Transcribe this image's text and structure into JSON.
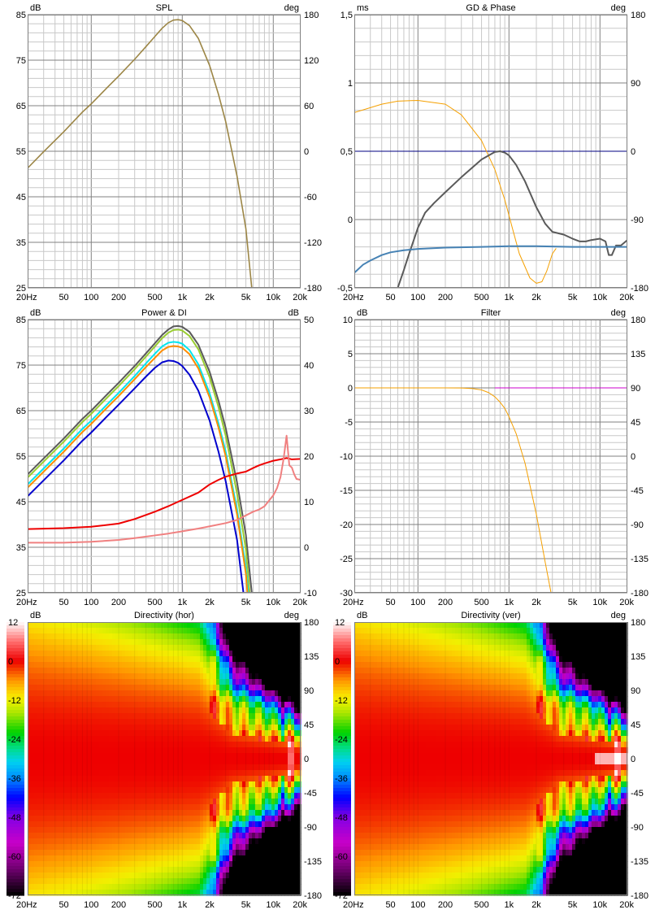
{
  "colors": {
    "background": "#ffffff",
    "plot_bg": "#ffffff",
    "grid_major": "#808080",
    "grid_minor": "#c8c8c8",
    "frame": "#808080"
  },
  "x_axis": {
    "type": "log",
    "range": [
      20,
      20000
    ],
    "ticks": [
      {
        "value": 20,
        "label": "20Hz"
      },
      {
        "value": 50,
        "label": "50"
      },
      {
        "value": 100,
        "label": "100"
      },
      {
        "value": 200,
        "label": "200"
      },
      {
        "value": 500,
        "label": "500"
      },
      {
        "value": 1000,
        "label": "1k"
      },
      {
        "value": 2000,
        "label": "2k"
      },
      {
        "value": 5000,
        "label": "5k"
      },
      {
        "value": 10000,
        "label": "10k"
      },
      {
        "value": 20000,
        "label": "20k"
      }
    ]
  },
  "chart_data": [
    {
      "id": "spl",
      "type": "line",
      "title": "SPL",
      "ylabel_left": "dB",
      "ylabel_right": "deg",
      "y_left": {
        "range": [
          25,
          85
        ],
        "ticks": [
          "85",
          "75",
          "65",
          "55",
          "45",
          "35",
          "25"
        ]
      },
      "y_right": {
        "range": [
          -180,
          180
        ],
        "ticks": [
          "180",
          "120",
          "60",
          "0",
          "-60",
          "-120",
          "-180"
        ]
      },
      "grid": true,
      "series": [
        {
          "axis": "left",
          "color": "#9c8646",
          "width": 1.6,
          "x": [
            20,
            30,
            50,
            80,
            100,
            150,
            200,
            300,
            400,
            500,
            600,
            700,
            800,
            900,
            1000,
            1200,
            1500,
            2000,
            2500,
            3000,
            4000,
            5000,
            5800
          ],
          "y": [
            51.3,
            54.9,
            59.3,
            63.6,
            65.4,
            69,
            71.5,
            75.2,
            78,
            80.2,
            82,
            83.2,
            83.8,
            83.9,
            83.7,
            82.6,
            79.8,
            73.8,
            67.5,
            61.5,
            49.5,
            38,
            25
          ]
        }
      ]
    },
    {
      "id": "gd_phase",
      "type": "line",
      "title": "GD & Phase",
      "ylabel_left": "ms",
      "ylabel_right": "deg",
      "y_left": {
        "range": [
          -0.5,
          1.5
        ],
        "ticks": [
          "1,5",
          "1",
          "0,5",
          "0",
          "-0,5"
        ]
      },
      "y_right": {
        "range": [
          -180,
          180
        ],
        "ticks": [
          "180",
          "90",
          "0",
          "-90",
          "-180"
        ]
      },
      "grid": true,
      "series": [
        {
          "axis": "left",
          "color": "#000080",
          "width": 1,
          "x": [
            20,
            20000
          ],
          "y": [
            0.5,
            0.5
          ]
        },
        {
          "axis": "right",
          "color": "#f5a000",
          "width": 1,
          "x": [
            20,
            40,
            60,
            100,
            200,
            300,
            500,
            700,
            900,
            1100,
            1300,
            1700,
            2000,
            2300,
            2600,
            3000,
            3300
          ],
          "y": [
            51,
            62,
            66,
            67,
            62,
            48,
            14,
            -24,
            -64,
            -103,
            -135,
            -167,
            -174,
            -172,
            -158,
            -135,
            -128
          ]
        },
        {
          "axis": "left",
          "color": "#5a5a5a",
          "width": 2,
          "x": [
            60,
            70,
            80,
            90,
            100,
            120,
            150,
            200,
            300,
            500,
            700,
            800,
            900,
            1000,
            1200,
            1500,
            2000,
            2500,
            3000,
            4000,
            5000,
            6000,
            7000,
            8000,
            10000,
            11500,
            12500,
            13500,
            15000,
            17000,
            20000
          ],
          "y": [
            -0.5,
            -0.37,
            -0.25,
            -0.15,
            -0.06,
            0.05,
            0.12,
            0.2,
            0.31,
            0.44,
            0.495,
            0.5,
            0.49,
            0.47,
            0.4,
            0.28,
            0.09,
            -0.03,
            -0.09,
            -0.11,
            -0.14,
            -0.16,
            -0.16,
            -0.15,
            -0.14,
            -0.16,
            -0.26,
            -0.26,
            -0.19,
            -0.19,
            -0.15
          ]
        },
        {
          "axis": "left",
          "color": "#4682b4",
          "width": 2,
          "x": [
            20,
            25,
            30,
            40,
            50,
            70,
            100,
            200,
            500,
            1000,
            2000,
            5000,
            10000,
            20000
          ],
          "y": [
            -0.39,
            -0.33,
            -0.3,
            -0.26,
            -0.24,
            -0.225,
            -0.215,
            -0.205,
            -0.2,
            -0.195,
            -0.195,
            -0.2,
            -0.2,
            -0.2
          ]
        }
      ]
    },
    {
      "id": "power_di",
      "type": "line",
      "title": "Power & DI",
      "ylabel_left": "dB",
      "ylabel_right": "dB",
      "y_left": {
        "range": [
          25,
          85
        ],
        "ticks": [
          "85",
          "75",
          "65",
          "55",
          "45",
          "35",
          "25"
        ]
      },
      "y_right": {
        "range": [
          -10,
          50
        ],
        "ticks": [
          "50",
          "40",
          "30",
          "20",
          "10",
          "0",
          "-10"
        ]
      },
      "grid": true,
      "series": [
        {
          "axis": "left",
          "color": "#5a5a5a",
          "width": 2,
          "x": [
            20,
            30,
            50,
            80,
            100,
            150,
            200,
            300,
            400,
            500,
            600,
            700,
            800,
            900,
            1000,
            1200,
            1500,
            2000,
            2500,
            3000,
            4000,
            5000,
            5800
          ],
          "y": [
            51,
            54.5,
            58.9,
            63.2,
            65,
            68.6,
            71.1,
            74.8,
            77.6,
            79.8,
            81.6,
            82.8,
            83.5,
            83.6,
            83.4,
            82.3,
            79.5,
            73.5,
            67.2,
            61.2,
            49.2,
            37.7,
            25
          ]
        },
        {
          "axis": "left",
          "color": "#9acd32",
          "width": 2,
          "x": [
            20,
            30,
            50,
            80,
            100,
            150,
            200,
            300,
            400,
            500,
            600,
            700,
            800,
            900,
            1000,
            1200,
            1500,
            2000,
            2500,
            3000,
            4000,
            5000,
            5500
          ],
          "y": [
            50.3,
            53.8,
            58.2,
            62.5,
            64.3,
            67.9,
            70.4,
            74.1,
            76.9,
            79.1,
            80.9,
            82.1,
            82.7,
            82.8,
            82.6,
            81.4,
            78.5,
            72.3,
            65.8,
            59.5,
            46.8,
            34.5,
            25
          ]
        },
        {
          "axis": "left",
          "color": "#00e5ee",
          "width": 2,
          "x": [
            20,
            30,
            50,
            80,
            100,
            150,
            200,
            300,
            400,
            500,
            600,
            700,
            800,
            900,
            1000,
            1200,
            1500,
            2000,
            2500,
            3000,
            4000,
            5000,
            5300
          ],
          "y": [
            48.8,
            52.3,
            56.7,
            61,
            62.8,
            66.4,
            68.9,
            72.6,
            75.4,
            77.5,
            79.1,
            79.9,
            80.1,
            80,
            79.7,
            78.3,
            75.2,
            68.8,
            62.2,
            56,
            43.3,
            30.5,
            25
          ]
        },
        {
          "axis": "left",
          "color": "#ff8c00",
          "width": 2,
          "x": [
            20,
            30,
            50,
            80,
            100,
            150,
            200,
            300,
            400,
            500,
            600,
            700,
            800,
            900,
            1000,
            1200,
            1500,
            2000,
            2500,
            3000,
            4000,
            5000,
            5200
          ],
          "y": [
            48.1,
            51.6,
            56,
            60.3,
            62.1,
            65.7,
            68.2,
            71.9,
            74.6,
            76.6,
            78.2,
            79,
            79.2,
            79.1,
            78.8,
            77.4,
            74.3,
            67.9,
            61.3,
            55,
            42.2,
            29.2,
            25
          ]
        },
        {
          "axis": "left",
          "color": "#0000cd",
          "width": 2,
          "x": [
            20,
            30,
            50,
            80,
            100,
            150,
            200,
            300,
            400,
            500,
            600,
            700,
            800,
            900,
            1000,
            1200,
            1500,
            2000,
            2500,
            3000,
            4000,
            4700
          ],
          "y": [
            46.2,
            49.7,
            54.1,
            58.4,
            60.2,
            63.8,
            66.3,
            69.9,
            72.5,
            74.4,
            75.6,
            76,
            75.9,
            75.5,
            74.8,
            72.9,
            69.4,
            62.8,
            56,
            49.5,
            36.6,
            25
          ]
        },
        {
          "axis": "right",
          "color": "#ee0000",
          "width": 2,
          "x": [
            20,
            50,
            100,
            200,
            300,
            500,
            700,
            1000,
            1500,
            2000,
            2500,
            3000,
            4000,
            5000,
            6000,
            7000,
            8000,
            10000,
            12000,
            14000,
            16000,
            20000
          ],
          "y": [
            4,
            4.2,
            4.5,
            5.2,
            6.2,
            7.8,
            9,
            10.4,
            12,
            13.8,
            14.8,
            15.5,
            16.2,
            16.6,
            17.4,
            18,
            18.4,
            19,
            19.3,
            19.6,
            19.3,
            19.4
          ]
        },
        {
          "axis": "right",
          "color": "#f08080",
          "width": 2,
          "x": [
            20,
            50,
            100,
            200,
            300,
            500,
            700,
            1000,
            1500,
            2000,
            3000,
            4000,
            5000,
            6000,
            7000,
            8000,
            10000,
            11000,
            12000,
            13000,
            14000,
            15000,
            16000,
            17000,
            18000,
            20000
          ],
          "y": [
            1,
            1,
            1.2,
            1.6,
            2,
            2.6,
            3,
            3.5,
            4.1,
            4.6,
            5.3,
            6,
            7,
            7.8,
            8.3,
            9,
            11.4,
            13,
            15.4,
            19.5,
            24.5,
            18,
            17.5,
            16,
            15,
            14.8
          ]
        }
      ]
    },
    {
      "id": "filter",
      "type": "line",
      "title": "Filter",
      "ylabel_left": "dB",
      "ylabel_right": "deg",
      "y_left": {
        "range": [
          -30,
          10
        ],
        "ticks": [
          "10",
          "5",
          "0",
          "-5",
          "-10",
          "-15",
          "-20",
          "-25",
          "-30"
        ]
      },
      "y_right": {
        "range": [
          -180,
          180
        ],
        "ticks": [
          "180",
          "135",
          "90",
          "45",
          "0",
          "-45",
          "-90",
          "-135",
          "-180"
        ]
      },
      "grid": true,
      "series": [
        {
          "axis": "left",
          "color": "#f5a000",
          "width": 1,
          "x": [
            20,
            200,
            300,
            400,
            500,
            600,
            700,
            800,
            900,
            1000,
            1200,
            1500,
            2000,
            2500,
            2900
          ],
          "y": [
            0,
            0,
            -0.02,
            -0.1,
            -0.3,
            -0.7,
            -1.3,
            -2.1,
            -3,
            -4.2,
            -6.7,
            -11,
            -18.5,
            -25.5,
            -30
          ]
        },
        {
          "axis": "right",
          "color": "#cc00cc",
          "width": 1,
          "x": [
            700,
            20000
          ],
          "y": [
            90,
            90
          ]
        }
      ]
    },
    {
      "id": "directivity_hor",
      "type": "heatmap",
      "title": "Directivity (hor)",
      "ylabel_left": "dB",
      "ylabel_right": "deg",
      "y_right": {
        "range": [
          -180,
          180
        ],
        "ticks": [
          "180",
          "135",
          "90",
          "45",
          "0",
          "-45",
          "-90",
          "-135",
          "-180"
        ]
      },
      "colorbar": {
        "range": [
          -72,
          12
        ],
        "ticks": [
          "12",
          "0",
          "-12",
          "-24",
          "-36",
          "-48",
          "-60",
          "-72"
        ]
      },
      "grid": false
    },
    {
      "id": "directivity_ver",
      "type": "heatmap",
      "title": "Directivity (ver)",
      "ylabel_left": "dB",
      "ylabel_right": "deg",
      "y_right": {
        "range": [
          -180,
          180
        ],
        "ticks": [
          "180",
          "135",
          "90",
          "45",
          "0",
          "-45",
          "-90",
          "-135",
          "-180"
        ]
      },
      "colorbar": {
        "range": [
          -72,
          12
        ],
        "ticks": [
          "12",
          "0",
          "-12",
          "-24",
          "-36",
          "-48",
          "-60",
          "-72"
        ]
      },
      "grid": false
    }
  ]
}
